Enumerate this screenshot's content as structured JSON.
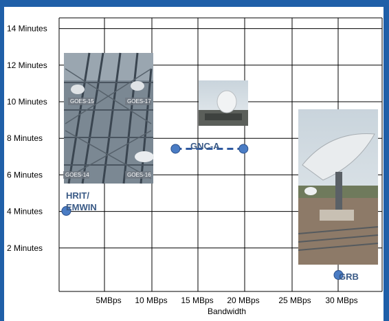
{
  "chart_data": {
    "type": "scatter",
    "title": "",
    "xlabel": "Bandwidth",
    "ylabel": "",
    "xlim": [
      0,
      35
    ],
    "ylim": [
      0,
      15
    ],
    "x_tick_labels": [
      "5MBps",
      "10 MBps",
      "15 MBps",
      "20 MBps",
      "25 MBps",
      "30 MBps"
    ],
    "y_tick_labels": [
      "2 Minutes",
      "4 Minutes",
      "6 Minutes",
      "8 Minutes",
      "10 Minutes",
      "12 Minutes",
      "14 Minutes"
    ],
    "grid": true,
    "points": [
      {
        "name": "HRIT/ EMWIN",
        "x": 0.4,
        "y": 3.8
      },
      {
        "name": "GNC-A",
        "x": 12.5,
        "y": 7.2
      },
      {
        "name": "GNC-A",
        "x": 19.8,
        "y": 7.2
      },
      {
        "name": "GRB",
        "x": 30.0,
        "y": 0.3
      }
    ],
    "annotations": [
      {
        "id": "hrit",
        "lines": [
          "HRIT/",
          "EMWIN"
        ]
      },
      {
        "id": "gnca",
        "lines": [
          "GNC-A"
        ]
      },
      {
        "id": "grb",
        "lines": [
          "GRB"
        ]
      }
    ],
    "photo_labels": [
      "GOES-15",
      "GOES-17",
      "GOES-14",
      "GOES-16"
    ]
  },
  "colors": {
    "frame": "#1f5fa8",
    "point_fill": "#4a7cc4",
    "point_stroke": "#2a4f8a",
    "annotation": "#3a5a86",
    "grid": "#000000"
  }
}
